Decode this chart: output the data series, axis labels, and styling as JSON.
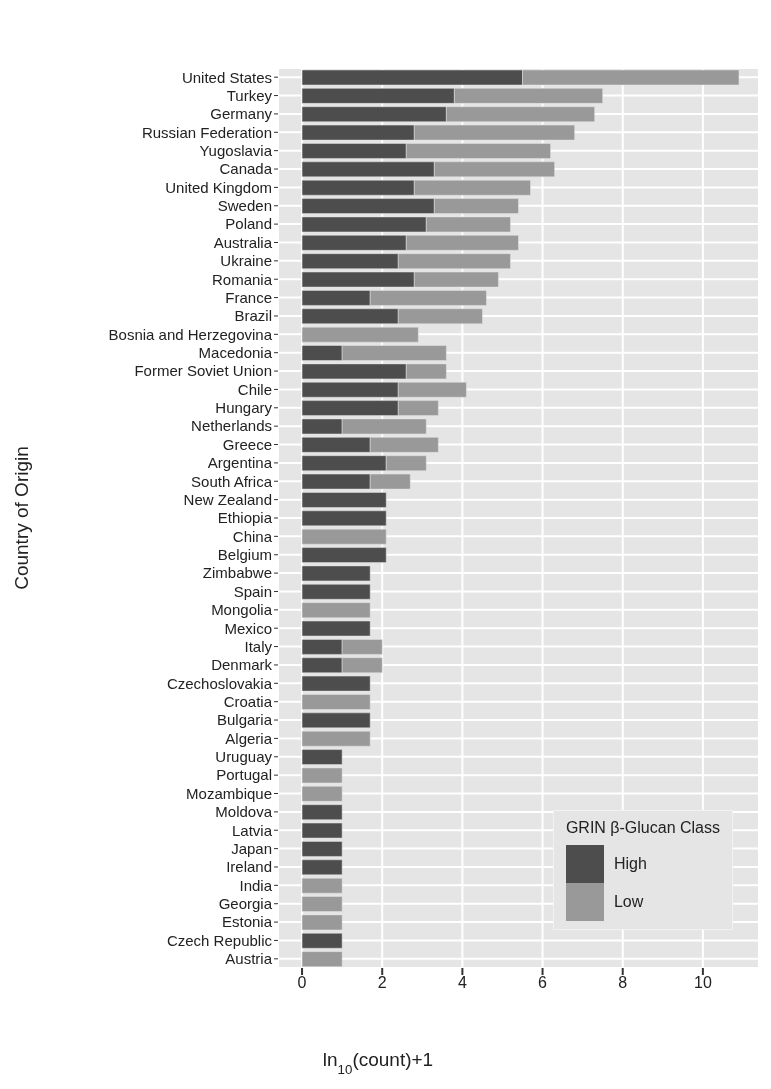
{
  "chart_data": {
    "type": "bar",
    "orientation": "horizontal",
    "stacked": true,
    "xlabel": "ln$_{10}$(count)+1",
    "ylabel": "Country of Origin",
    "legend_title": "GRIN β-Glucan Class",
    "legend": "bottom right",
    "grid": true,
    "categories": [
      "United States",
      "Turkey",
      "Germany",
      "Russian Federation",
      "Yugoslavia",
      "Canada",
      "United Kingdom",
      "Sweden",
      "Poland",
      "Australia",
      "Ukraine",
      "Romania",
      "France",
      "Brazil",
      "Bosnia and Herzegovina",
      "Macedonia",
      "Former Soviet Union",
      "Chile",
      "Hungary",
      "Netherlands",
      "Greece",
      "Argentina",
      "South Africa",
      "New Zealand",
      "Ethiopia",
      "China",
      "Belgium",
      "Zimbabwe",
      "Spain",
      "Mongolia",
      "Mexico",
      "Italy",
      "Denmark",
      "Czechoslovakia",
      "Croatia",
      "Bulgaria",
      "Algeria",
      "Uruguay",
      "Portugal",
      "Mozambique",
      "Moldova",
      "Latvia",
      "Japan",
      "Ireland",
      "India",
      "Georgia",
      "Estonia",
      "Czech Republic",
      "Austria"
    ],
    "series": [
      {
        "name": "High",
        "color": "#4d4d4d",
        "values": [
          5.5,
          3.8,
          3.6,
          2.8,
          2.6,
          3.3,
          2.8,
          3.3,
          3.1,
          2.6,
          2.4,
          2.8,
          1.7,
          2.4,
          null,
          1.0,
          2.6,
          2.4,
          2.4,
          1.0,
          1.7,
          2.1,
          1.7,
          2.1,
          2.1,
          null,
          2.1,
          1.7,
          1.7,
          null,
          1.7,
          1.0,
          1.0,
          1.7,
          null,
          1.7,
          null,
          1.0,
          null,
          null,
          1.0,
          1.0,
          1.0,
          1.0,
          null,
          null,
          null,
          1.0,
          null
        ]
      },
      {
        "name": "Low",
        "color": "#999999",
        "values": [
          5.4,
          3.7,
          3.7,
          4.0,
          3.6,
          3.0,
          2.9,
          2.1,
          2.1,
          2.8,
          2.8,
          2.1,
          2.9,
          2.1,
          2.9,
          2.6,
          1.0,
          1.7,
          1.0,
          2.1,
          1.7,
          1.0,
          1.0,
          null,
          null,
          2.1,
          null,
          null,
          null,
          1.7,
          null,
          1.0,
          1.0,
          null,
          1.7,
          null,
          1.7,
          null,
          1.0,
          1.0,
          null,
          null,
          null,
          null,
          1.0,
          1.0,
          1.0,
          null,
          1.0
        ]
      }
    ],
    "xlim": [
      -0.6,
      11.4
    ],
    "xticks": [
      0,
      2,
      4,
      6,
      8,
      10
    ]
  }
}
